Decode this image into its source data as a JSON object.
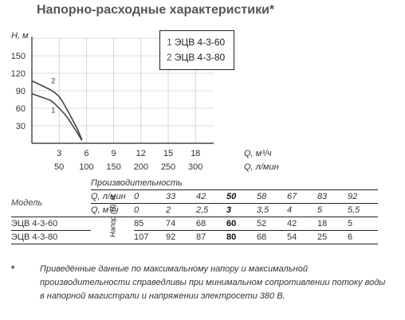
{
  "title": "Напорно-расходные характеристики*",
  "legend": [
    {
      "num": "1",
      "label": "ЭЦВ 4-3-60"
    },
    {
      "num": "2",
      "label": "ЭЦВ 4-3-80"
    }
  ],
  "chart_data": {
    "type": "line",
    "ylabel": "H, м",
    "xlabel_primary": "Q, м³/ч",
    "xlabel_secondary": "Q, л/мин",
    "x_ticks_primary": [
      "3",
      "6",
      "9",
      "12",
      "15",
      "18"
    ],
    "x_ticks_secondary": [
      "50",
      "100",
      "150",
      "200",
      "250",
      "300"
    ],
    "y_ticks": [
      "30",
      "60",
      "90",
      "120",
      "150"
    ],
    "xlim": [
      0,
      20
    ],
    "ylim": [
      0,
      180
    ],
    "grid": true,
    "series": [
      {
        "name": "1",
        "x": [
          0,
          2,
          2.5,
          3,
          3.5,
          4,
          5,
          5.5
        ],
        "y": [
          85,
          74,
          68,
          60,
          52,
          42,
          18,
          5
        ]
      },
      {
        "name": "2",
        "x": [
          0,
          2,
          2.5,
          3,
          3.5,
          4,
          5,
          5.5
        ],
        "y": [
          107,
          92,
          87,
          80,
          68,
          54,
          25,
          6
        ]
      }
    ]
  },
  "table": {
    "model_header": "Модель",
    "group_header": "Производительность",
    "head_label": "Напор (Н), м",
    "row_lpm": {
      "label": "Q, л/мин",
      "values": [
        "0",
        "33",
        "42",
        "50",
        "58",
        "67",
        "83",
        "92"
      ]
    },
    "row_m3h": {
      "label": "Q, м³/ч",
      "values": [
        "0",
        "2",
        "2,5",
        "3",
        "3,5",
        "4",
        "5",
        "5,5"
      ]
    },
    "rows": [
      {
        "model": "ЭЦВ 4-3-60",
        "values": [
          "85",
          "74",
          "68",
          "60",
          "52",
          "42",
          "18",
          "5"
        ]
      },
      {
        "model": "ЭЦВ 4-3-80",
        "values": [
          "107",
          "92",
          "87",
          "80",
          "68",
          "54",
          "25",
          "6"
        ]
      }
    ]
  },
  "note": {
    "star": "*",
    "text": "Приведённые данные по максимальному напору и максимальной производительности справедливы при минимальном сопротивлении потоку воды в напорной магистрали и напряжении электросети 380 В."
  }
}
